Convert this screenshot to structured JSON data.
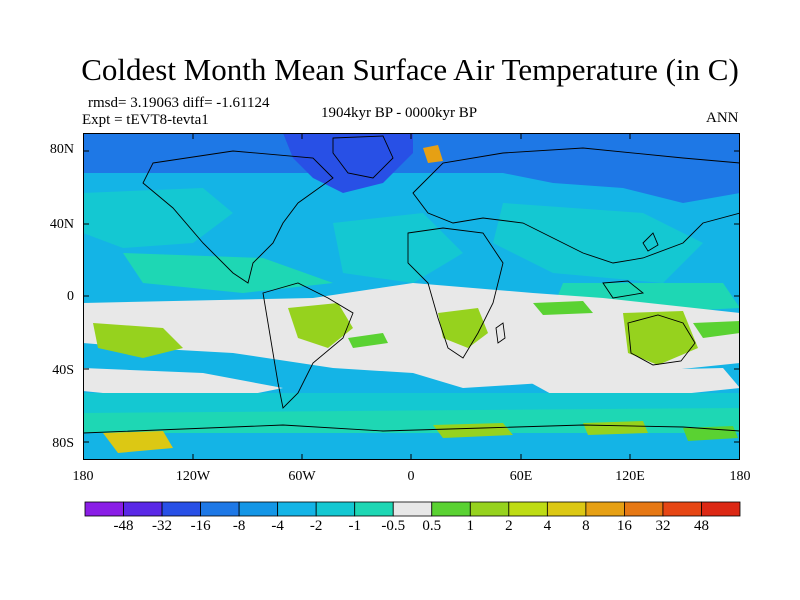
{
  "title": "Coldest Month Mean Surface Air Temperature (in C)",
  "stats": "rmsd= 3.19063 diff= -1.61124",
  "experiment": "Expt = tEVT8-tevta1",
  "period": "1904kyr BP - 0000kyr BP",
  "season": "ANN",
  "map": {
    "projection": "cylindrical-equidistant",
    "lon_range": [
      -180,
      180
    ],
    "lat_range": [
      -90,
      90
    ],
    "lat_labels": [
      "80N",
      "40N",
      "0",
      "40S",
      "80S"
    ],
    "lon_labels": [
      "180",
      "120W",
      "60W",
      "0",
      "60E",
      "120E",
      "180"
    ],
    "lat_values": [
      80,
      40,
      0,
      -40,
      -80
    ],
    "lon_values": [
      -180,
      -120,
      -60,
      0,
      60,
      120,
      180
    ]
  },
  "colorbar": {
    "labels": [
      "-48",
      "-32",
      "-16",
      "-8",
      "-4",
      "-2",
      "-1",
      "-0.5",
      "0.5",
      "1",
      "2",
      "4",
      "8",
      "16",
      "32",
      "48"
    ],
    "colors": [
      "#8a1ee6",
      "#5a28e6",
      "#2850e6",
      "#1e78e6",
      "#1496e6",
      "#14b4e6",
      "#14c8d2",
      "#1ed7b4",
      "#e8e8e8",
      "#5ad232",
      "#96d21e",
      "#bedc14",
      "#dcc814",
      "#e6a014",
      "#e67814",
      "#e64614",
      "#dc2814"
    ]
  }
}
